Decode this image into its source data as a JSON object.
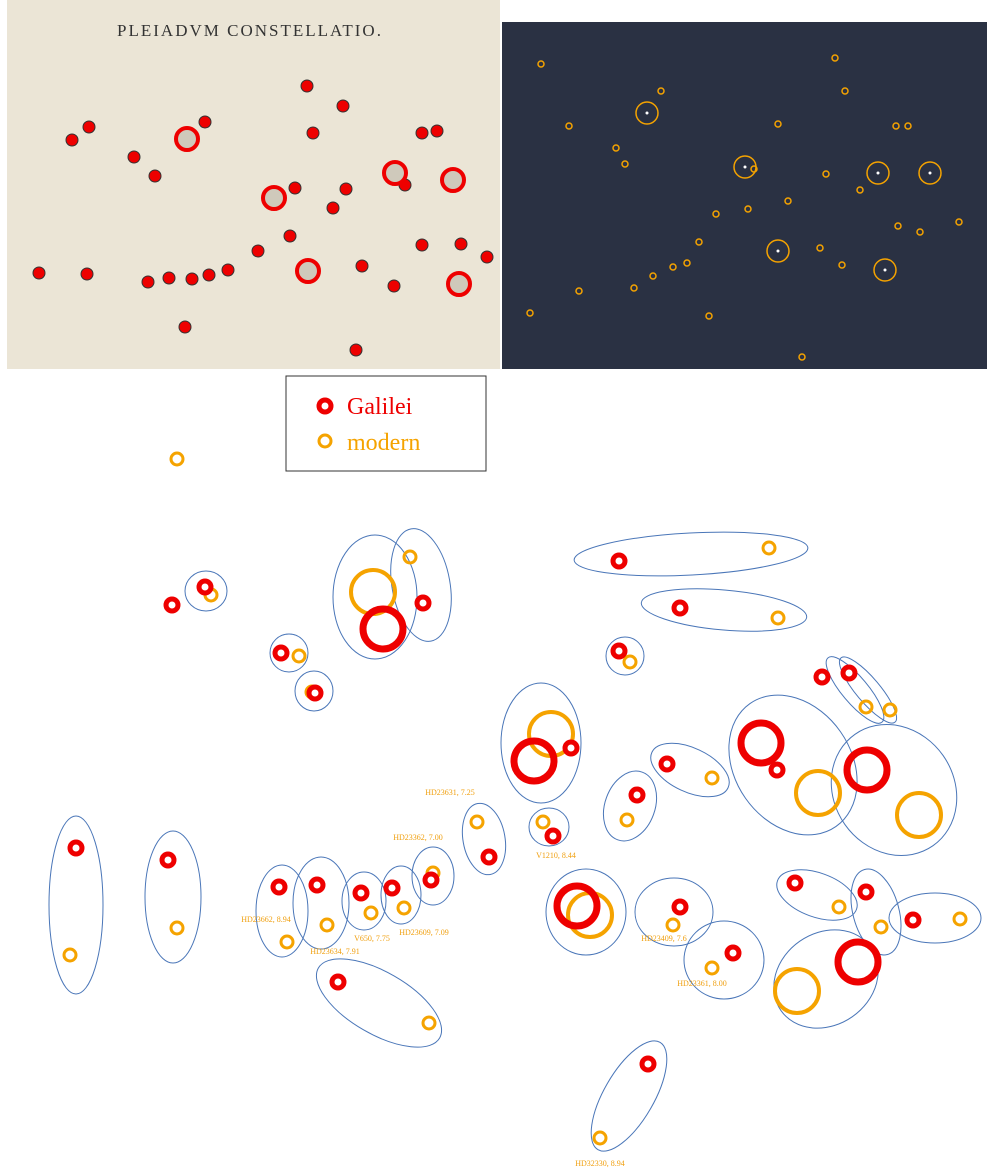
{
  "figure": {
    "engraving_title": "PLEIADVM CONSTELLATIO.",
    "legend": {
      "galilei": "Galilei",
      "modern": "modern"
    },
    "star_labels": [
      "HD23631, 7.25",
      "HD23362, 7.00",
      "HD23662, 8.94",
      "HD23634, 7.91",
      "V650, 7.75",
      "HD23609, 7.09",
      "V1210, 8.44",
      "HD23409, 7.6",
      "HD23361, 8.00",
      "HD32330, 8.94"
    ]
  }
}
